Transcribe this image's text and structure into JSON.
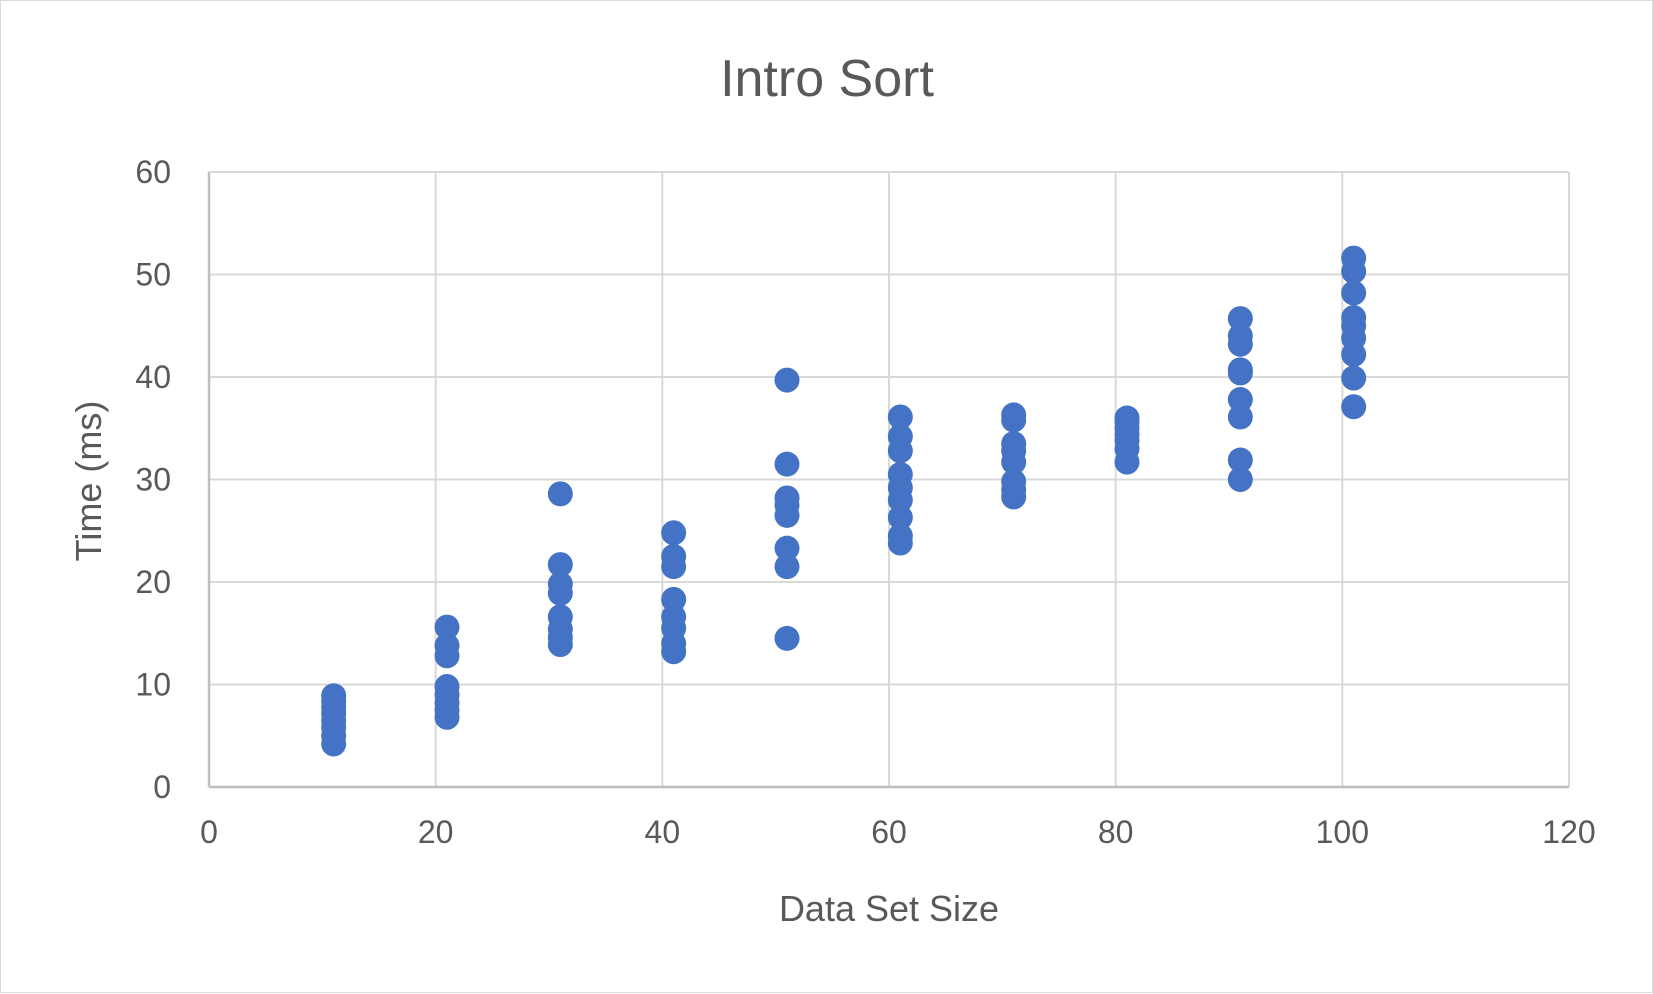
{
  "chart_data": {
    "type": "scatter",
    "title": "Intro Sort",
    "xlabel": "Data Set Size",
    "ylabel": "Time (ms)",
    "xlim": [
      0,
      120
    ],
    "ylim": [
      0,
      60
    ],
    "xticks": [
      0,
      20,
      40,
      60,
      80,
      100,
      120
    ],
    "yticks": [
      0,
      10,
      20,
      30,
      40,
      50,
      60
    ],
    "grid": true,
    "legend": "none",
    "marker_color": "#4472C4",
    "series": [
      {
        "points": [
          [
            11,
            4.2
          ],
          [
            11,
            5.0
          ],
          [
            11,
            5.8
          ],
          [
            11,
            6.5
          ],
          [
            11,
            7.2
          ],
          [
            11,
            7.8
          ],
          [
            11,
            8.4
          ],
          [
            11,
            8.9
          ],
          [
            21,
            6.8
          ],
          [
            21,
            7.5
          ],
          [
            21,
            8.2
          ],
          [
            21,
            9.0
          ],
          [
            21,
            9.8
          ],
          [
            21,
            12.8
          ],
          [
            21,
            13.8
          ],
          [
            21,
            15.6
          ],
          [
            31,
            13.9
          ],
          [
            31,
            14.6
          ],
          [
            31,
            15.4
          ],
          [
            31,
            16.6
          ],
          [
            31,
            18.9
          ],
          [
            31,
            19.8
          ],
          [
            31,
            21.7
          ],
          [
            31,
            28.6
          ],
          [
            41,
            13.2
          ],
          [
            41,
            14.0
          ],
          [
            41,
            15.5
          ],
          [
            41,
            16.6
          ],
          [
            41,
            18.3
          ],
          [
            41,
            21.5
          ],
          [
            41,
            22.5
          ],
          [
            41,
            24.8
          ],
          [
            51,
            14.5
          ],
          [
            51,
            21.5
          ],
          [
            51,
            23.3
          ],
          [
            51,
            26.5
          ],
          [
            51,
            27.5
          ],
          [
            51,
            28.2
          ],
          [
            51,
            31.5
          ],
          [
            51,
            39.7
          ],
          [
            61,
            23.8
          ],
          [
            61,
            24.5
          ],
          [
            61,
            26.3
          ],
          [
            61,
            28.0
          ],
          [
            61,
            29.2
          ],
          [
            61,
            30.5
          ],
          [
            61,
            32.8
          ],
          [
            61,
            34.2
          ],
          [
            61,
            36.1
          ],
          [
            71,
            28.3
          ],
          [
            71,
            29.0
          ],
          [
            71,
            29.8
          ],
          [
            71,
            31.7
          ],
          [
            71,
            32.8
          ],
          [
            71,
            33.5
          ],
          [
            71,
            35.8
          ],
          [
            71,
            36.3
          ],
          [
            81,
            31.7
          ],
          [
            81,
            33.0
          ],
          [
            81,
            33.8
          ],
          [
            81,
            34.4
          ],
          [
            81,
            35.0
          ],
          [
            81,
            35.6
          ],
          [
            81,
            36.0
          ],
          [
            91,
            30.0
          ],
          [
            91,
            31.9
          ],
          [
            91,
            36.1
          ],
          [
            91,
            37.8
          ],
          [
            91,
            40.4
          ],
          [
            91,
            40.7
          ],
          [
            91,
            43.2
          ],
          [
            91,
            44.0
          ],
          [
            91,
            45.7
          ],
          [
            101,
            37.1
          ],
          [
            101,
            39.9
          ],
          [
            101,
            42.2
          ],
          [
            101,
            43.8
          ],
          [
            101,
            45.0
          ],
          [
            101,
            45.8
          ],
          [
            101,
            48.2
          ],
          [
            101,
            50.3
          ],
          [
            101,
            51.6
          ]
        ]
      }
    ]
  }
}
